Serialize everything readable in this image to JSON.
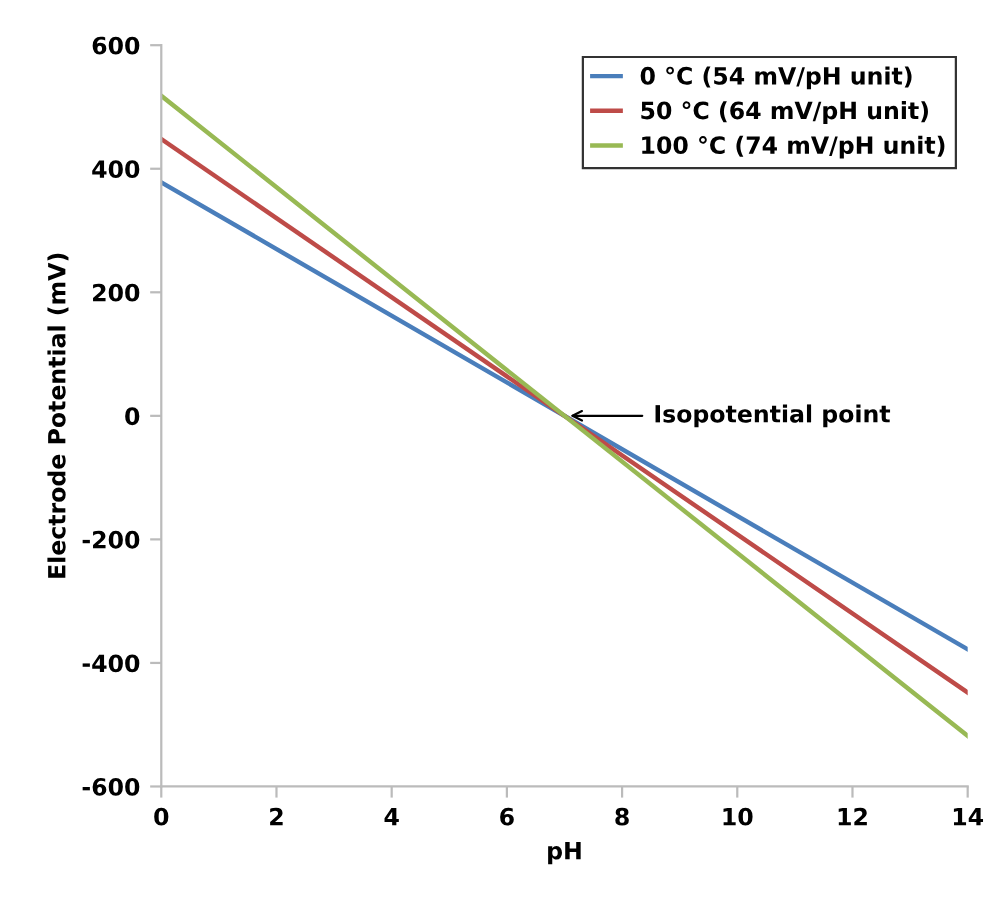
{
  "chart_data": {
    "type": "line",
    "xlabel": "pH",
    "ylabel": "Electrode Potential (mV)",
    "x": [
      0,
      14
    ],
    "series": [
      {
        "name": "0 °C (54 mV/pH unit)",
        "color": "#4a7ebb",
        "values": [
          378,
          -378
        ]
      },
      {
        "name": "50 °C (64 mV/pH unit)",
        "color": "#be4b48",
        "values": [
          448,
          -448
        ]
      },
      {
        "name": "100 °C (74 mV/pH unit)",
        "color": "#98b954",
        "values": [
          518,
          -518
        ]
      }
    ],
    "xlim": [
      0,
      14
    ],
    "xticks": [
      0,
      2,
      4,
      6,
      8,
      10,
      12,
      14
    ],
    "ylim": [
      -600,
      600
    ],
    "yticks": [
      -600,
      -400,
      -200,
      0,
      200,
      400,
      600
    ],
    "grid": false,
    "legend": "top right",
    "marker": "none",
    "line_style": "solid",
    "annotations": [
      {
        "text": "Isopotential point",
        "x": 7,
        "y": 0
      }
    ]
  }
}
